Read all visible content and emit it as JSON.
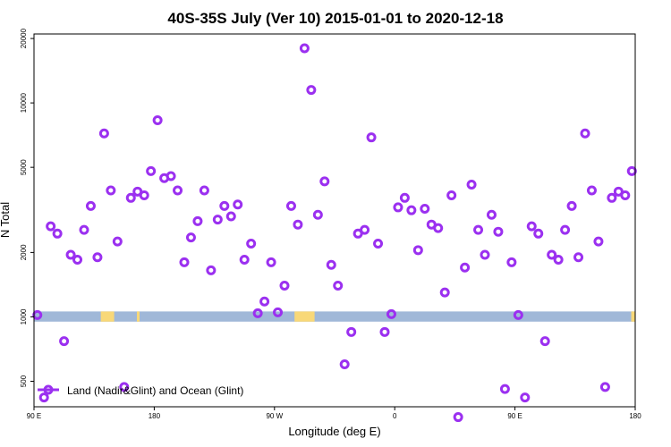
{
  "chart_data": {
    "type": "scatter",
    "title": "40S-35S July (Ver 10)   2015-01-01 to 2020-12-18",
    "xlabel": "Longitude (deg E)",
    "ylabel": "N Total",
    "y_scale": "log",
    "ylim": [
      380,
      21000
    ],
    "xlim": [
      90,
      540
    ],
    "x_ticks": [
      {
        "value": 90,
        "label": "90 E"
      },
      {
        "value": 180,
        "label": "180"
      },
      {
        "value": 270,
        "label": "90 W"
      },
      {
        "value": 360,
        "label": "0"
      },
      {
        "value": 450,
        "label": "90 E"
      },
      {
        "value": 540,
        "label": "180"
      }
    ],
    "y_ticks": [
      {
        "value": 500,
        "label": "500"
      },
      {
        "value": 1000,
        "label": "1000"
      },
      {
        "value": 2000,
        "label": "2000"
      },
      {
        "value": 5000,
        "label": "5000"
      },
      {
        "value": 10000,
        "label": "10000"
      },
      {
        "value": 20000,
        "label": "20000"
      }
    ],
    "grid": false,
    "legend": {
      "placement": "bottom-left"
    },
    "colors": {
      "series": "#9b30f0",
      "band_ocean": "#a0b8d8",
      "band_land": "#f8d878"
    },
    "band": {
      "y_range": [
        950,
        1060
      ],
      "land_segments": [
        [
          140,
          150
        ],
        [
          167,
          169
        ],
        [
          285,
          300
        ],
        [
          537,
          540
        ]
      ]
    },
    "series": [
      {
        "name": "Land (Nadir&Glint) and Ocean (Glint)",
        "x": [
          92.5,
          97.5,
          102.5,
          107.5,
          112.5,
          117.5,
          122.5,
          127.5,
          132.5,
          137.5,
          142.5,
          147.5,
          152.5,
          157.5,
          162.5,
          167.5,
          172.5,
          177.5,
          182.5,
          187.5,
          192.5,
          197.5,
          202.5,
          207.5,
          212.5,
          217.5,
          222.5,
          227.5,
          232.5,
          237.5,
          242.5,
          247.5,
          252.5,
          257.5,
          262.5,
          267.5,
          272.5,
          277.5,
          282.5,
          287.5,
          292.5,
          297.5,
          302.5,
          307.5,
          312.5,
          317.5,
          322.5,
          327.5,
          332.5,
          337.5,
          342.5,
          347.5,
          352.5,
          357.5,
          362.5,
          367.5,
          372.5,
          377.5,
          382.5,
          387.5,
          392.5,
          397.5,
          402.5,
          407.5,
          412.5,
          417.5,
          422.5,
          427.5,
          432.5,
          437.5,
          442.5,
          447.5,
          452.5,
          457.5,
          462.5,
          467.5,
          472.5,
          477.5,
          482.5,
          487.5,
          492.5,
          497.5,
          502.5,
          507.5,
          512.5,
          517.5,
          522.5,
          527.5,
          532.5,
          537.5
        ],
        "values": [
          1020,
          420,
          2650,
          2450,
          770,
          1950,
          1850,
          2550,
          3300,
          1900,
          7200,
          3900,
          2250,
          470,
          3600,
          3850,
          3700,
          4800,
          8300,
          4450,
          4550,
          3900,
          1800,
          2350,
          2800,
          3900,
          1650,
          2850,
          3300,
          2950,
          3350,
          1850,
          2200,
          1040,
          1180,
          1800,
          1050,
          1400,
          3300,
          2700,
          18000,
          11500,
          3000,
          4300,
          1750,
          1400,
          600,
          850,
          2450,
          2550,
          6900,
          2200,
          850,
          1030,
          3250,
          3600,
          3150,
          2050,
          3200,
          2700,
          2600,
          1300,
          3700,
          340,
          1700,
          4150,
          2550,
          1950,
          3000,
          2500,
          460,
          1800,
          1020,
          420,
          2650,
          2450,
          770,
          1950,
          1850,
          2550,
          3300,
          1900,
          7200,
          3900,
          2250,
          470,
          3600,
          3850,
          3700,
          4800
        ]
      }
    ]
  }
}
